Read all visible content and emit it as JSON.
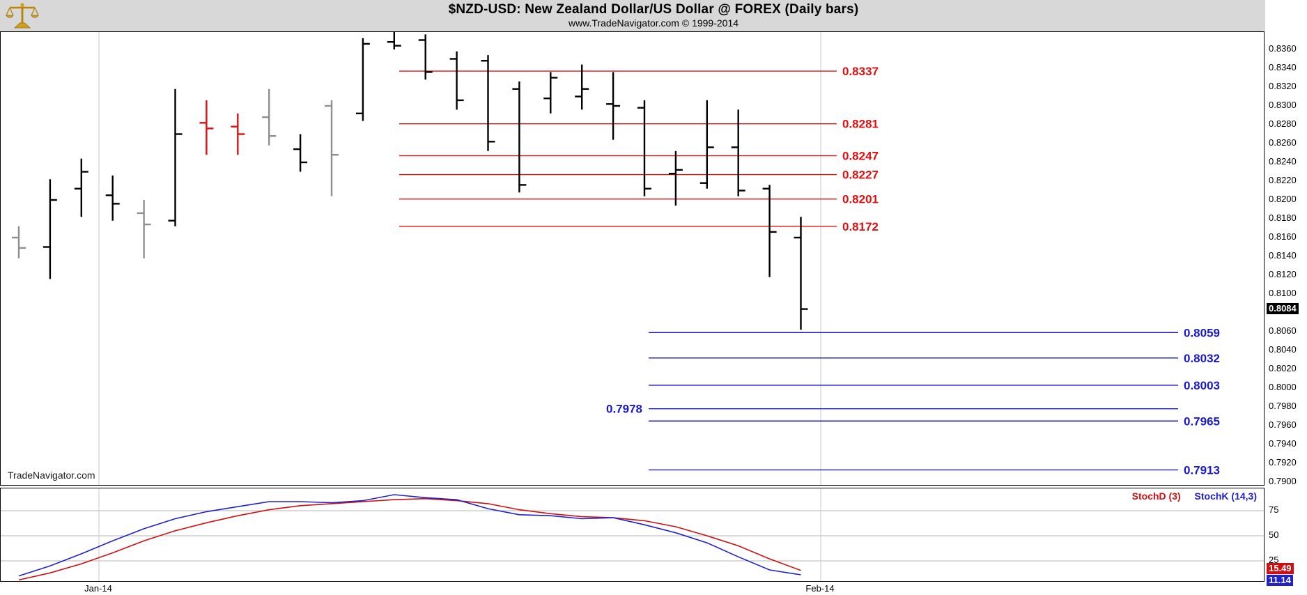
{
  "header": {
    "title": "$NZD-USD:  New Zealand Dollar/US Dollar @ FOREX  (Daily bars)",
    "subtitle": "www.TradeNavigator.com © 1999-2014"
  },
  "watermark": "TradeNavigator.com",
  "legend": {
    "stochd": "StochD (3)",
    "stochk": "StochK (14,3)"
  },
  "axes": {
    "price_ticks": [
      "0.8360",
      "0.8340",
      "0.8320",
      "0.8300",
      "0.8280",
      "0.8260",
      "0.8240",
      "0.8220",
      "0.8200",
      "0.8180",
      "0.8160",
      "0.8140",
      "0.8120",
      "0.8100",
      "0.8060",
      "0.8040",
      "0.8020",
      "0.8000",
      "0.7980",
      "0.7960",
      "0.7940",
      "0.7920",
      "0.7900"
    ],
    "current_price": "0.8084",
    "stoch_ticks": [
      "75",
      "50",
      "25"
    ],
    "stochd_current": "15.49",
    "stochk_current": "11.14",
    "x_labels": [
      {
        "label": "Jan-14"
      },
      {
        "label": "Feb-14"
      }
    ]
  },
  "colors": {
    "resistance": "#e01010",
    "support": "#1818cc",
    "stoch_d": "#d01010",
    "stoch_k": "#2020cc",
    "current_price_bg": "#000000",
    "grid": "#c9c9c9",
    "bars": {
      "black": "#000000",
      "gray": "#8f8f8f",
      "red": "#e01010"
    }
  },
  "chart_data": {
    "type": "bar",
    "subtype": "ohlc-bars",
    "title": "$NZD-USD: New Zealand Dollar/US Dollar @ FOREX (Daily bars)",
    "price_range": [
      0.79,
      0.836
    ],
    "bars": [
      {
        "o": 0.816,
        "h": 0.8172,
        "l": 0.8138,
        "c": 0.8149,
        "color": "gray"
      },
      {
        "o": 0.815,
        "h": 0.8222,
        "l": 0.8116,
        "c": 0.82,
        "color": "black"
      },
      {
        "o": 0.8212,
        "h": 0.8244,
        "l": 0.8182,
        "c": 0.823,
        "color": "black"
      },
      {
        "o": 0.8205,
        "h": 0.8226,
        "l": 0.8178,
        "c": 0.8196,
        "color": "black"
      },
      {
        "o": 0.8186,
        "h": 0.82,
        "l": 0.8138,
        "c": 0.8174,
        "color": "gray"
      },
      {
        "o": 0.8178,
        "h": 0.8318,
        "l": 0.8172,
        "c": 0.827,
        "color": "black"
      },
      {
        "o": 0.8282,
        "h": 0.8306,
        "l": 0.8248,
        "c": 0.8276,
        "color": "red"
      },
      {
        "o": 0.8278,
        "h": 0.8292,
        "l": 0.8248,
        "c": 0.827,
        "color": "red"
      },
      {
        "o": 0.8288,
        "h": 0.8318,
        "l": 0.8258,
        "c": 0.8268,
        "color": "gray"
      },
      {
        "o": 0.8254,
        "h": 0.827,
        "l": 0.823,
        "c": 0.824,
        "color": "black"
      },
      {
        "o": 0.83,
        "h": 0.8306,
        "l": 0.8204,
        "c": 0.8248,
        "color": "gray"
      },
      {
        "o": 0.8292,
        "h": 0.8372,
        "l": 0.8284,
        "c": 0.8366,
        "color": "black"
      },
      {
        "o": 0.8368,
        "h": 0.8382,
        "l": 0.836,
        "c": 0.8364,
        "color": "black"
      },
      {
        "o": 0.837,
        "h": 0.8376,
        "l": 0.8328,
        "c": 0.8336,
        "color": "black"
      },
      {
        "o": 0.835,
        "h": 0.8358,
        "l": 0.8296,
        "c": 0.8306,
        "color": "black"
      },
      {
        "o": 0.8348,
        "h": 0.8354,
        "l": 0.8252,
        "c": 0.8262,
        "color": "black"
      },
      {
        "o": 0.8318,
        "h": 0.8326,
        "l": 0.8208,
        "c": 0.8216,
        "color": "black"
      },
      {
        "o": 0.8308,
        "h": 0.8336,
        "l": 0.8292,
        "c": 0.833,
        "color": "black"
      },
      {
        "o": 0.831,
        "h": 0.8344,
        "l": 0.8296,
        "c": 0.8318,
        "color": "black"
      },
      {
        "o": 0.8302,
        "h": 0.8336,
        "l": 0.8264,
        "c": 0.83,
        "color": "black"
      },
      {
        "o": 0.8298,
        "h": 0.8306,
        "l": 0.8204,
        "c": 0.8212,
        "color": "black"
      },
      {
        "o": 0.8228,
        "h": 0.8252,
        "l": 0.8194,
        "c": 0.8232,
        "color": "black"
      },
      {
        "o": 0.8218,
        "h": 0.8306,
        "l": 0.8212,
        "c": 0.8256,
        "color": "black"
      },
      {
        "o": 0.8256,
        "h": 0.8296,
        "l": 0.8204,
        "c": 0.821,
        "color": "black"
      },
      {
        "o": 0.8212,
        "h": 0.8216,
        "l": 0.8118,
        "c": 0.8166,
        "color": "black"
      },
      {
        "o": 0.816,
        "h": 0.8182,
        "l": 0.8062,
        "c": 0.8084,
        "color": "black"
      }
    ],
    "resistance_levels": [
      {
        "price": 0.8337,
        "label": "0.8337"
      },
      {
        "price": 0.8281,
        "label": "0.8281"
      },
      {
        "price": 0.8247,
        "label": "0.8247"
      },
      {
        "price": 0.8227,
        "label": "0.8227"
      },
      {
        "price": 0.8201,
        "label": "0.8201"
      },
      {
        "price": 0.8172,
        "label": "0.8172"
      }
    ],
    "support_levels": [
      {
        "price": 0.8059,
        "label": "0.8059",
        "label_side": "right"
      },
      {
        "price": 0.8032,
        "label": "0.8032",
        "label_side": "right"
      },
      {
        "price": 0.8003,
        "label": "0.8003",
        "label_side": "right"
      },
      {
        "price": 0.7978,
        "label": "0.7978",
        "label_side": "left"
      },
      {
        "price": 0.7965,
        "label": "0.7965",
        "label_side": "right"
      },
      {
        "price": 0.7913,
        "label": "0.7913",
        "label_side": "right"
      }
    ],
    "stochastic": {
      "d_label": "StochD (3)",
      "k_label": "StochK (14,3)",
      "range": [
        0,
        100
      ],
      "gridlines": [
        75,
        50,
        25
      ],
      "d": [
        6,
        13,
        22,
        33,
        45,
        55,
        63,
        70,
        76,
        80,
        82,
        84,
        86,
        87,
        85,
        82,
        76,
        72,
        69,
        68,
        65,
        59,
        50,
        40,
        27,
        15.49
      ],
      "k": [
        10,
        20,
        32,
        45,
        57,
        67,
        74,
        79,
        84,
        84,
        83,
        85,
        91,
        88,
        86,
        77,
        71,
        70,
        67,
        68,
        61,
        53,
        43,
        29,
        16,
        11.14
      ],
      "d_current": 15.49,
      "k_current": 11.14
    }
  }
}
